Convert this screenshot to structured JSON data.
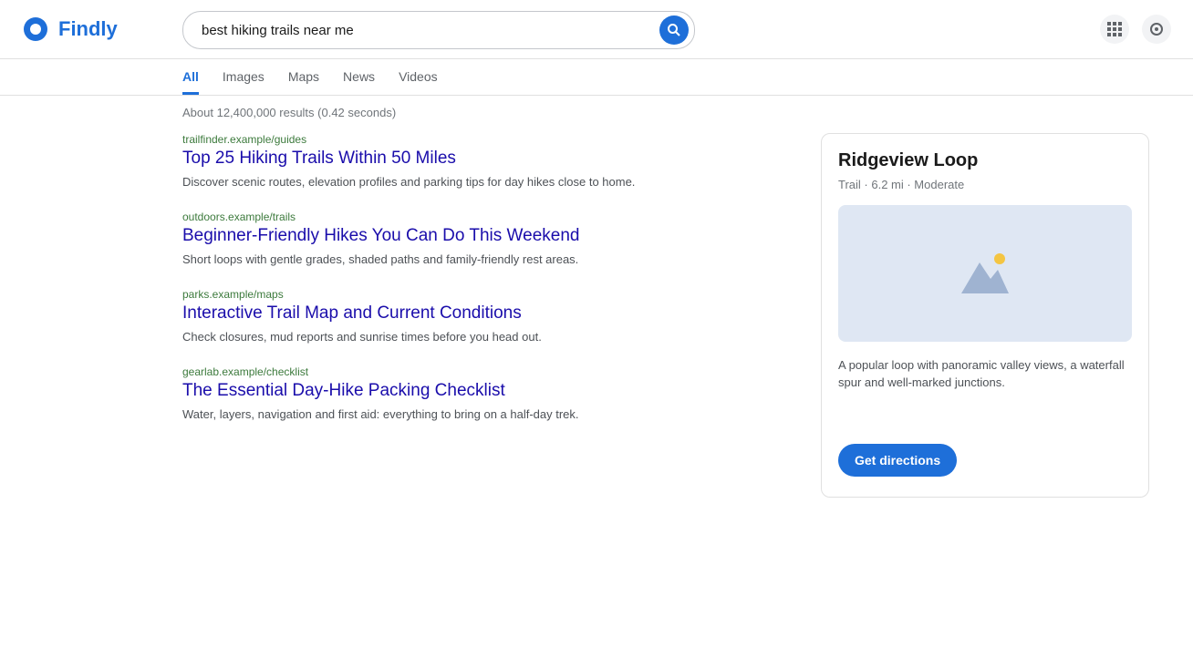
{
  "brand": {
    "name": "Findly"
  },
  "search": {
    "query": "best hiking trails near me",
    "placeholder": "Search"
  },
  "tabs": [
    {
      "label": "All"
    },
    {
      "label": "Images"
    },
    {
      "label": "Maps"
    },
    {
      "label": "News"
    },
    {
      "label": "Videos"
    }
  ],
  "stats": "About 12,400,000 results (0.42 seconds)",
  "results": [
    {
      "url": "trailfinder.example/guides",
      "title": "Top 25 Hiking Trails Within 50 Miles",
      "snippet": "Discover scenic routes, elevation profiles and parking tips for day hikes close to home."
    },
    {
      "url": "outdoors.example/trails",
      "title": "Beginner-Friendly Hikes You Can Do This Weekend",
      "snippet": "Short loops with gentle grades, shaded paths and family-friendly rest areas."
    },
    {
      "url": "parks.example/maps",
      "title": "Interactive Trail Map and Current Conditions",
      "snippet": "Check closures, mud reports and sunrise times before you head out."
    },
    {
      "url": "gearlab.example/checklist",
      "title": "The Essential Day-Hike Packing Checklist",
      "snippet": "Water, layers, navigation and first aid: everything to bring on a half-day trek."
    }
  ],
  "panel": {
    "title": "Ridgeview Loop",
    "subtitle": "Trail · 6.2 mi · Moderate",
    "body": "A popular loop with panoramic valley views, a waterfall spur and well-marked junctions.",
    "action": "Get directions"
  },
  "colors": {
    "accent": "#1e6fd9",
    "link": "#1a0dab"
  },
  "icons": {
    "search": "search-icon",
    "settings": "gear-icon",
    "apps": "grid-icon",
    "media": "mountain-icon"
  }
}
